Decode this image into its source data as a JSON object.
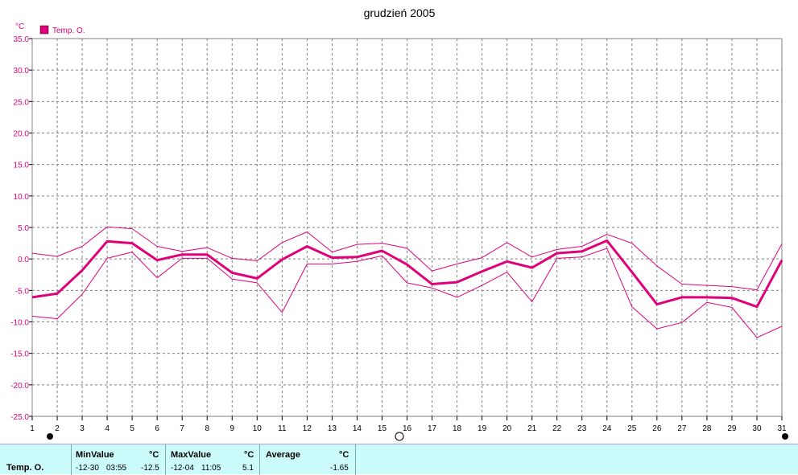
{
  "chart_data": {
    "type": "line",
    "title": "grudzień 2005",
    "y_unit": "°C",
    "legend": {
      "label": "Temp. O.",
      "color": "#e0007a",
      "placement": "top-left"
    },
    "x_categories": [
      1,
      2,
      3,
      4,
      5,
      6,
      7,
      8,
      9,
      10,
      11,
      12,
      13,
      14,
      15,
      16,
      17,
      18,
      19,
      20,
      21,
      22,
      23,
      24,
      25,
      26,
      27,
      28,
      29,
      30,
      31
    ],
    "y_ticks": [
      "35.0",
      "30.0",
      "25.0",
      "20.0",
      "15.0",
      "10.0",
      "5.0",
      "0.0",
      "-5.0",
      "-10.0",
      "-15.0",
      "-20.0",
      "-25.0"
    ],
    "ylim": [
      -25,
      35
    ],
    "grid": true,
    "series": [
      {
        "line": "average",
        "values": [
          -6.1,
          -5.5,
          -1.8,
          2.8,
          2.5,
          -0.2,
          0.7,
          0.7,
          -2.2,
          -3.1,
          -0.1,
          2.0,
          0.2,
          0.3,
          1.3,
          -0.9,
          -4.0,
          -3.7,
          -2.0,
          -0.4,
          -1.4,
          0.9,
          1.2,
          2.9,
          -2.1,
          -7.2,
          -6.1,
          -6.1,
          -6.2,
          -7.6,
          -0.2
        ]
      },
      {
        "line": "max",
        "values": [
          0.9,
          0.4,
          2.0,
          5.1,
          4.8,
          2.0,
          1.2,
          1.8,
          0.1,
          -0.3,
          2.6,
          4.3,
          1.1,
          2.3,
          2.5,
          1.7,
          -1.9,
          -0.8,
          0.2,
          2.6,
          0.3,
          1.5,
          2.0,
          3.9,
          2.5,
          -1.1,
          -4.0,
          -4.2,
          -4.4,
          -4.9,
          2.4
        ]
      },
      {
        "line": "min",
        "values": [
          -9.1,
          -9.5,
          -5.6,
          0.1,
          1.1,
          -3.0,
          0.1,
          0.1,
          -3.2,
          -3.8,
          -8.5,
          -0.8,
          -0.8,
          -0.4,
          0.5,
          -3.8,
          -4.6,
          -6.1,
          -4.2,
          -2.1,
          -6.8,
          0.1,
          0.3,
          1.7,
          -7.6,
          -11.1,
          -10.1,
          -6.9,
          -7.7,
          -12.5,
          -10.7
        ]
      }
    ]
  },
  "stats": {
    "row_label": "Temp. O.",
    "min": {
      "label": "MinValue",
      "unit": "°C",
      "date": "-12-30",
      "time": "03:55",
      "value": "-12.5"
    },
    "max": {
      "label": "MaxValue",
      "unit": "°C",
      "date": "-12-04",
      "time": "11:05",
      "value": "5.1"
    },
    "avg": {
      "label": "Average",
      "unit": "°C",
      "value": "-1.65"
    }
  }
}
